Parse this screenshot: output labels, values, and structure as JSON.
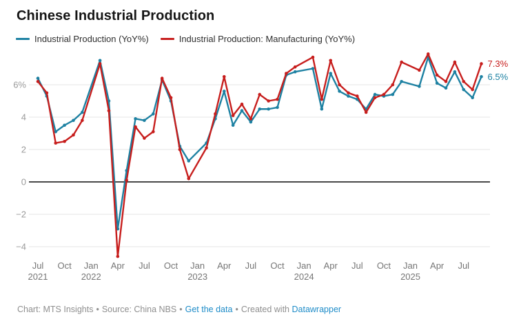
{
  "title": "Chinese Industrial Production",
  "legend": {
    "items": [
      {
        "label": "Industrial Production (YoY%)",
        "color": "#1d81a2"
      },
      {
        "label": "Industrial Production: Manufacturing (YoY%)",
        "color": "#c71e1d"
      }
    ]
  },
  "footer": {
    "chart_credit": "Chart: MTS Insights",
    "source": "Source: China NBS",
    "data_link": "Get the data",
    "created_with": "Created with",
    "tool_link": "Datawrapper",
    "separator": "•",
    "link_color": "#1e8cc8"
  },
  "chart_data": {
    "type": "line",
    "title": "Chinese Industrial Production",
    "grid": "horizontal",
    "legend_position": "top",
    "ylim": [
      -4.6,
      7.9
    ],
    "x_labels": [
      "Jul 2021",
      "Aug 2021",
      "Sep 2021",
      "Oct 2021",
      "Nov 2021",
      "Dec 2021",
      "Jan-Feb 2022",
      "Mar 2022",
      "Apr 2022",
      "May 2022",
      "Jun 2022",
      "Jul 2022",
      "Aug 2022",
      "Sep 2022",
      "Oct 2022",
      "Nov 2022",
      "Dec 2022",
      "Jan-Feb 2023",
      "Mar 2023",
      "Apr 2023",
      "May 2023",
      "Jun 2023",
      "Jul 2023",
      "Aug 2023",
      "Sep 2023",
      "Oct 2023",
      "Nov 2023",
      "Dec 2023",
      "Jan-Feb 2024",
      "Mar 2024",
      "Apr 2024",
      "May 2024",
      "Jun 2024",
      "Jul 2024",
      "Aug 2024",
      "Sep 2024",
      "Oct 2024",
      "Nov 2024",
      "Dec 2024",
      "Jan-Feb 2025",
      "Mar 2025",
      "Apr 2025",
      "May 2025",
      "Jun 2025",
      "Jul 2025",
      "Aug 2025",
      "Sep 2025"
    ],
    "month_offsets": [
      0,
      1,
      2,
      3,
      4,
      5,
      7,
      8,
      9,
      10,
      11,
      12,
      13,
      14,
      15,
      16,
      17,
      19,
      20,
      21,
      22,
      23,
      24,
      25,
      26,
      27,
      28,
      29,
      31,
      32,
      33,
      34,
      35,
      36,
      37,
      38,
      39,
      40,
      41,
      43,
      44,
      45,
      46,
      47,
      48,
      49,
      50
    ],
    "series": [
      {
        "name": "Industrial Production (YoY%)",
        "color": "#1d81a2",
        "end_label": "6.5%",
        "values": [
          6.4,
          5.3,
          3.1,
          3.5,
          3.8,
          4.3,
          7.5,
          5.0,
          -2.9,
          0.7,
          3.9,
          3.8,
          4.2,
          6.3,
          5.0,
          2.2,
          1.3,
          2.4,
          3.9,
          5.6,
          3.5,
          4.4,
          3.7,
          4.5,
          4.5,
          4.6,
          6.6,
          6.8,
          7.0,
          4.5,
          6.7,
          5.6,
          5.3,
          5.1,
          4.5,
          5.4,
          5.3,
          5.4,
          6.2,
          5.9,
          7.7,
          6.1,
          5.8,
          6.8,
          5.7,
          5.2,
          6.5
        ]
      },
      {
        "name": "Industrial Production: Manufacturing (YoY%)",
        "color": "#c71e1d",
        "end_label": "7.3%",
        "values": [
          6.2,
          5.5,
          2.4,
          2.5,
          2.9,
          3.8,
          7.3,
          4.4,
          -4.6,
          0.1,
          3.4,
          2.7,
          3.1,
          6.4,
          5.2,
          2.0,
          0.2,
          2.1,
          4.2,
          6.5,
          4.1,
          4.8,
          3.9,
          5.4,
          5.0,
          5.1,
          6.7,
          7.1,
          7.7,
          5.1,
          7.5,
          6.0,
          5.5,
          5.3,
          4.3,
          5.2,
          5.4,
          6.0,
          7.4,
          6.9,
          7.9,
          6.6,
          6.2,
          7.4,
          6.2,
          5.7,
          7.3
        ]
      }
    ],
    "y_ticks": [
      {
        "v": 6,
        "label": "6%"
      },
      {
        "v": 4,
        "label": "4"
      },
      {
        "v": 2,
        "label": "2"
      },
      {
        "v": 0,
        "label": "0"
      },
      {
        "v": -2,
        "label": "−2"
      },
      {
        "v": -4,
        "label": "−4"
      }
    ],
    "x_ticks": [
      {
        "m": 0,
        "label": "Jul",
        "year": "2021"
      },
      {
        "m": 3,
        "label": "Oct"
      },
      {
        "m": 6,
        "label": "Jan",
        "year": "2022"
      },
      {
        "m": 9,
        "label": "Apr"
      },
      {
        "m": 12,
        "label": "Jul"
      },
      {
        "m": 15,
        "label": "Oct"
      },
      {
        "m": 18,
        "label": "Jan",
        "year": "2023"
      },
      {
        "m": 21,
        "label": "Apr"
      },
      {
        "m": 24,
        "label": "Jul"
      },
      {
        "m": 27,
        "label": "Oct"
      },
      {
        "m": 30,
        "label": "Jan",
        "year": "2024"
      },
      {
        "m": 33,
        "label": "Apr"
      },
      {
        "m": 36,
        "label": "Jul"
      },
      {
        "m": 39,
        "label": "Oct"
      },
      {
        "m": 42,
        "label": "Jan",
        "year": "2025"
      },
      {
        "m": 45,
        "label": "Apr"
      },
      {
        "m": 48,
        "label": "Jul"
      }
    ]
  }
}
